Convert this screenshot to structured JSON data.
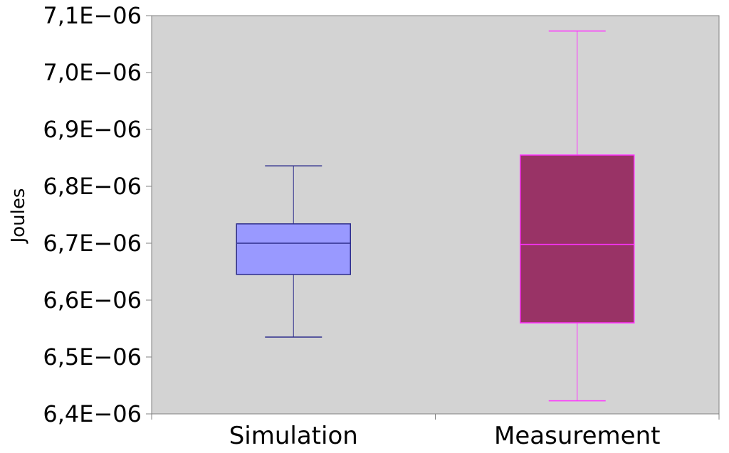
{
  "chart_data": {
    "type": "box",
    "title": "",
    "xlabel": "",
    "ylabel": "Joules",
    "ylim": [
      6.4e-06,
      7.1e-06
    ],
    "yticks": [
      {
        "value": 6.4e-06,
        "label": "6,4E−06"
      },
      {
        "value": 6.5e-06,
        "label": "6,5E−06"
      },
      {
        "value": 6.6e-06,
        "label": "6,6E−06"
      },
      {
        "value": 6.7e-06,
        "label": "6,7E−06"
      },
      {
        "value": 6.8e-06,
        "label": "6,8E−06"
      },
      {
        "value": 6.9e-06,
        "label": "6,9E−06"
      },
      {
        "value": 7e-06,
        "label": "7,0E−06"
      },
      {
        "value": 7.1e-06,
        "label": "7,1E−06"
      }
    ],
    "categories": [
      "Simulation",
      "Measurement"
    ],
    "boxes": [
      {
        "category": "Simulation",
        "min": 6.535e-06,
        "q1": 6.645e-06,
        "median": 6.7e-06,
        "q3": 6.734e-06,
        "max": 6.836e-06,
        "fill": "#9999ff",
        "stroke": "#2e2e8c"
      },
      {
        "category": "Measurement",
        "min": 6.423e-06,
        "q1": 6.56e-06,
        "median": 6.698e-06,
        "q3": 6.855e-06,
        "max": 7.073e-06,
        "fill": "#993366",
        "stroke": "#ff33ff"
      }
    ],
    "plot_background": "#d3d3d3",
    "grid": false,
    "legend": "none"
  }
}
